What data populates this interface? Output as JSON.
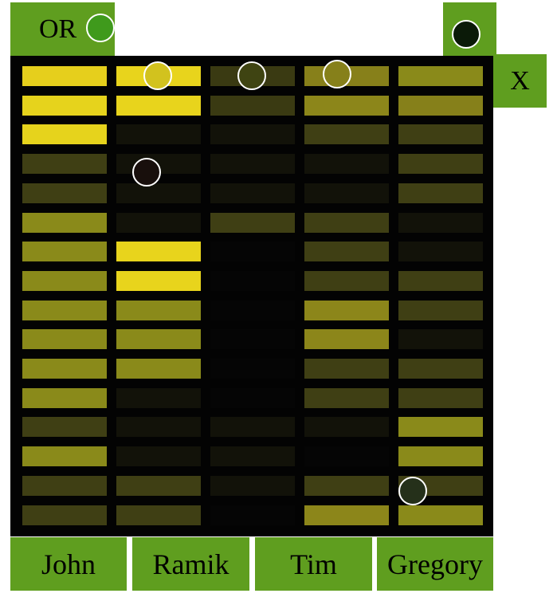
{
  "or_label": "OR",
  "x_label": "X",
  "players": [
    "John",
    "Ramik",
    "Tim",
    "Gregory"
  ],
  "board": {
    "columns": 5,
    "rows": 16,
    "cells": [
      [
        "#e6cf1c",
        "#e8d41c",
        "#3a3a12",
        "#87801a",
        "#8a8a1a"
      ],
      [
        "#e6d31c",
        "#e8d41c",
        "#3a3a12",
        "#8c861a",
        "#86801a"
      ],
      [
        "#e6d31c",
        "#121209",
        "#121209",
        "#3f3f14",
        "#3f3f14"
      ],
      [
        "#3f3f14",
        "#121209",
        "#121209",
        "#121209",
        "#3f3f14"
      ],
      [
        "#3f3f14",
        "#121209",
        "#121209",
        "#121209",
        "#3f3f14"
      ],
      [
        "#8a8a1a",
        "#121209",
        "#3f3f14",
        "#3f3f14",
        "#121209"
      ],
      [
        "#8a8a1a",
        "#e8d41c",
        "#050505",
        "#3f3f14",
        "#121209"
      ],
      [
        "#8a8a1a",
        "#e8d41c",
        "#050505",
        "#3f3f14",
        "#3f3f14"
      ],
      [
        "#8a8a1a",
        "#8a8a1a",
        "#050505",
        "#8c861a",
        "#3f3f14"
      ],
      [
        "#8a8a1a",
        "#8a8a1a",
        "#050505",
        "#8c861a",
        "#121209"
      ],
      [
        "#8a8a1a",
        "#8a8a1a",
        "#050505",
        "#3f3f14",
        "#3f3f14"
      ],
      [
        "#8a8a1a",
        "#121209",
        "#050505",
        "#3f3f14",
        "#3f3f14"
      ],
      [
        "#3f3f14",
        "#121209",
        "#121209",
        "#121209",
        "#8a8a1a"
      ],
      [
        "#8a8a1a",
        "#121209",
        "#121209",
        "#050505",
        "#8a8a1a"
      ],
      [
        "#3f3f14",
        "#3f3f14",
        "#121209",
        "#3f3f14",
        "#3f3f14"
      ],
      [
        "#3f3f14",
        "#3f3f14",
        "#050505",
        "#8c861a",
        "#8a8a1a"
      ]
    ]
  },
  "markers": [
    {
      "name": "or-marker",
      "color": "#3f9a1c"
    },
    {
      "name": "top-right-marker",
      "color": "#0b1a08"
    },
    {
      "name": "marker-ramik-top",
      "color": "#d2c21e"
    },
    {
      "name": "marker-mid-top",
      "color": "#3f4412"
    },
    {
      "name": "marker-tim-top",
      "color": "#86801a"
    },
    {
      "name": "marker-ramik-dark",
      "color": "#180f0c"
    },
    {
      "name": "marker-gregory-bottom",
      "color": "#25301a"
    }
  ]
}
